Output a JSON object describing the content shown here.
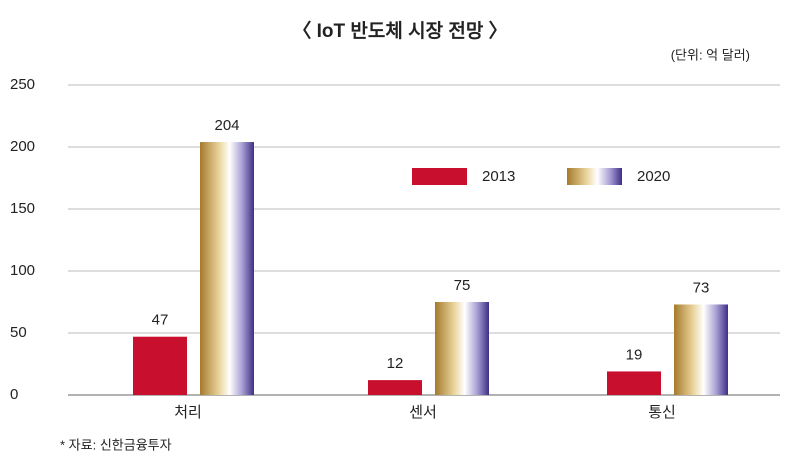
{
  "chart_data": {
    "type": "bar",
    "title": "〈 IoT 반도체 시장 전망 〉",
    "subtitle": "(단위: 억 달러)",
    "source": "* 자료: 신한금융투자",
    "categories": [
      "처리",
      "센서",
      "통신"
    ],
    "series": [
      {
        "name": "2013",
        "color": "#c8102e",
        "values": [
          47,
          12,
          19
        ]
      },
      {
        "name": "2020",
        "color": "#a57a2c",
        "values": [
          204,
          75,
          73
        ]
      }
    ],
    "ylim": [
      0,
      250
    ],
    "yticks": [
      0,
      50,
      100,
      150,
      200,
      250
    ],
    "grid": true
  }
}
